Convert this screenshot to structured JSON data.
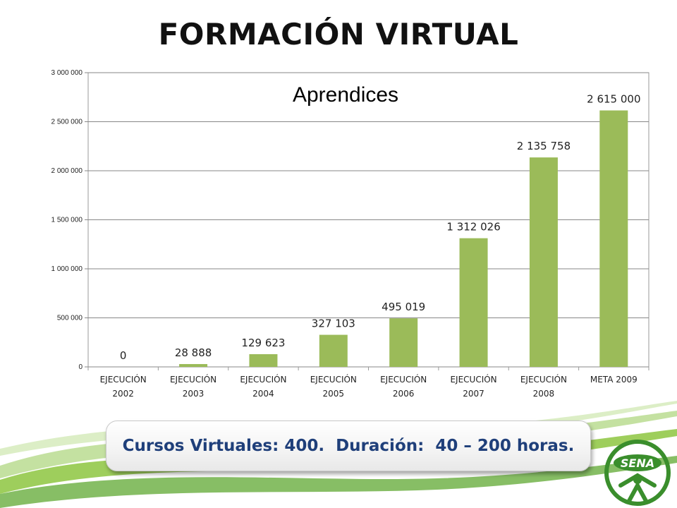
{
  "slide": {
    "title": "FORMACIÓN VIRTUAL",
    "footer": "Cursos Virtuales: 400.  Duración:  40 – 200 horas."
  },
  "colors": {
    "bar": "#9BBB59",
    "grid": "#878787",
    "footer_text": "#1F3F7A",
    "swoosh": "#8DC63F",
    "logo": "#3A8E2C"
  },
  "logo": {
    "text": "SENA",
    "icon": "sena-logo-icon"
  },
  "chart_data": {
    "type": "bar",
    "title": "Aprendices",
    "xlabel": "",
    "ylabel": "",
    "categories": [
      [
        "EJECUCIÓN",
        "2002"
      ],
      [
        "EJECUCIÓN",
        "2003"
      ],
      [
        "EJECUCIÓN",
        "2004"
      ],
      [
        "EJECUCIÓN",
        "2005"
      ],
      [
        "EJECUCIÓN",
        "2006"
      ],
      [
        "EJECUCIÓN",
        "2007"
      ],
      [
        "EJECUCIÓN",
        "2008"
      ],
      [
        "META 2009"
      ]
    ],
    "values": [
      0,
      28888,
      129623,
      327103,
      495019,
      1312026,
      2135758,
      2615000
    ],
    "data_labels": [
      "0",
      "28 888",
      "129 623",
      "327 103",
      "495 019",
      "1 312 026",
      "2 135 758",
      "2 615 000"
    ],
    "yticks": [
      0,
      500000,
      1000000,
      1500000,
      2000000,
      2500000,
      3000000
    ],
    "ytick_labels": [
      "0",
      "500 000",
      "1 000 000",
      "1 500 000",
      "2 000 000",
      "2 500 000",
      "3 000 000"
    ],
    "ylim": [
      0,
      3000000
    ],
    "grid": true,
    "legend": "none"
  }
}
